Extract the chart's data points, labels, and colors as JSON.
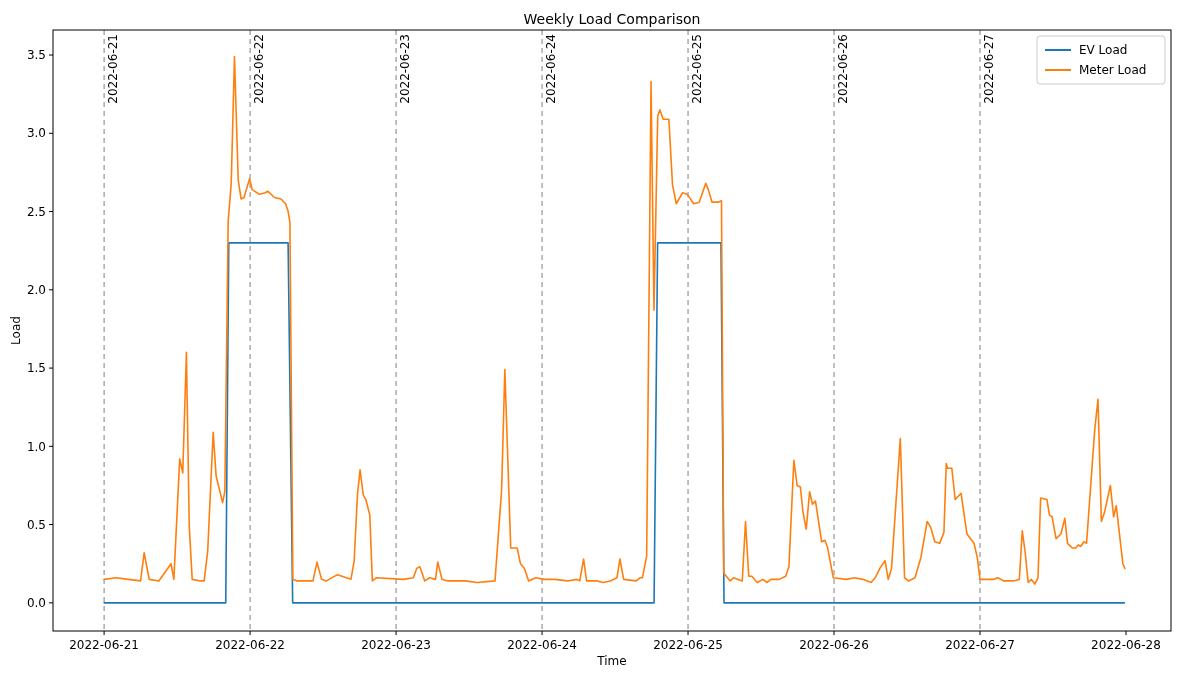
{
  "chart_data": {
    "type": "line",
    "title": "Weekly Load Comparison",
    "xlabel": "Time",
    "ylabel": "Load",
    "xlim": [
      "2022-06-20T15:36",
      "2022-06-28T07:24"
    ],
    "xticks": [
      "2022-06-21",
      "2022-06-22",
      "2022-06-23",
      "2022-06-24",
      "2022-06-25",
      "2022-06-26",
      "2022-06-27",
      "2022-06-28"
    ],
    "ylim": [
      -0.18,
      3.66
    ],
    "yticks": [
      {
        "value": 0,
        "label": "0.0"
      },
      {
        "value": 0.5,
        "label": "0.5"
      },
      {
        "value": 1,
        "label": "1.0"
      },
      {
        "value": 1.5,
        "label": "1.5"
      },
      {
        "value": 2,
        "label": "2.0"
      },
      {
        "value": 2.5,
        "label": "2.5"
      },
      {
        "value": 3,
        "label": "3.0"
      },
      {
        "value": 3.5,
        "label": "3.5"
      }
    ],
    "grid": false,
    "legend": "top right",
    "marker": "none",
    "line_style": "solid",
    "ref_lines": [
      {
        "axis": "x",
        "value": "2022-06-21",
        "label": "2022-06-21",
        "color": "#808080",
        "line_style": "dashed"
      },
      {
        "axis": "x",
        "value": "2022-06-22",
        "label": "2022-06-22",
        "color": "#808080",
        "line_style": "dashed"
      },
      {
        "axis": "x",
        "value": "2022-06-23",
        "label": "2022-06-23",
        "color": "#808080",
        "line_style": "dashed"
      },
      {
        "axis": "x",
        "value": "2022-06-24",
        "label": "2022-06-24",
        "color": "#808080",
        "line_style": "dashed"
      },
      {
        "axis": "x",
        "value": "2022-06-25",
        "label": "2022-06-25",
        "color": "#808080",
        "line_style": "dashed"
      },
      {
        "axis": "x",
        "value": "2022-06-26",
        "label": "2022-06-26",
        "color": "#808080",
        "line_style": "dashed"
      },
      {
        "axis": "x",
        "value": "2022-06-27",
        "label": "2022-06-27",
        "color": "#808080",
        "line_style": "dashed"
      }
    ],
    "series": [
      {
        "name": "EV Load",
        "color": "#1f77b4",
        "x": [
          "2022-06-21T00:00",
          "2022-06-21T20:00",
          "2022-06-21T20:30",
          "2022-06-22T06:15",
          "2022-06-22T07:00",
          "2022-06-24T18:25",
          "2022-06-24T19:00",
          "2022-06-25T05:25",
          "2022-06-25T05:55",
          "2022-06-27T23:45"
        ],
        "values": [
          0,
          0,
          2.3,
          2.3,
          0,
          0,
          2.3,
          2.3,
          0,
          0
        ]
      },
      {
        "name": "Meter Load",
        "color": "#ff7f0e",
        "x": [
          "2022-06-21T00:00",
          "2022-06-21T02:00",
          "2022-06-21T04:00",
          "2022-06-21T06:00",
          "2022-06-21T06:35",
          "2022-06-21T07:25",
          "2022-06-21T09:00",
          "2022-06-21T11:00",
          "2022-06-21T11:28",
          "2022-06-21T12:26",
          "2022-06-21T12:56",
          "2022-06-21T13:32",
          "2022-06-21T14:00",
          "2022-06-21T14:29",
          "2022-06-21T15:50",
          "2022-06-21T16:27",
          "2022-06-21T17:02",
          "2022-06-21T17:56",
          "2022-06-21T18:25",
          "2022-06-21T19:29",
          "2022-06-21T19:51",
          "2022-06-21T20:24",
          "2022-06-21T20:54",
          "2022-06-21T21:26",
          "2022-06-21T22:03",
          "2022-06-21T22:32",
          "2022-06-21T23:00",
          "2022-06-21T23:55",
          "2022-06-22T00:21",
          "2022-06-22T01:32",
          "2022-06-22T02:30",
          "2022-06-22T02:54",
          "2022-06-22T04:00",
          "2022-06-22T05:05",
          "2022-06-22T05:50",
          "2022-06-22T06:16",
          "2022-06-22T06:33",
          "2022-06-22T07:02",
          "2022-06-22T07:43",
          "2022-06-22T10:20",
          "2022-06-22T11:00",
          "2022-06-22T11:45",
          "2022-06-22T12:33",
          "2022-06-22T14:22",
          "2022-06-22T16:35",
          "2022-06-22T17:07",
          "2022-06-22T17:39",
          "2022-06-22T18:05",
          "2022-06-22T18:36",
          "2022-06-22T19:02",
          "2022-06-22T19:41",
          "2022-06-22T20:06",
          "2022-06-22T20:45",
          "2022-06-23T01:14",
          "2022-06-23T02:51",
          "2022-06-23T03:23",
          "2022-06-23T03:55",
          "2022-06-23T04:43",
          "2022-06-23T05:31",
          "2022-06-23T06:29",
          "2022-06-23T06:51",
          "2022-06-23T07:33",
          "2022-06-23T08:28",
          "2022-06-23T11:25",
          "2022-06-23T13:18",
          "2022-06-23T16:16",
          "2022-06-23T17:21",
          "2022-06-23T17:53",
          "2022-06-23T18:51",
          "2022-06-23T19:55",
          "2022-06-23T20:27",
          "2022-06-23T21:06",
          "2022-06-23T21:48",
          "2022-06-23T22:59",
          "2022-06-24T00:20",
          "2022-06-24T02:06",
          "2022-06-24T04:12",
          "2022-06-24T05:43",
          "2022-06-24T06:12",
          "2022-06-24T06:50",
          "2022-06-24T07:19",
          "2022-06-24T09:05",
          "2022-06-24T10:00",
          "2022-06-24T11:14",
          "2022-06-24T12:19",
          "2022-06-24T12:48",
          "2022-06-24T13:25",
          "2022-06-24T15:29",
          "2022-06-24T16:06",
          "2022-06-24T16:30",
          "2022-06-24T17:12",
          "2022-06-24T17:55",
          "2022-06-24T18:24",
          "2022-06-24T19:01",
          "2022-06-24T19:22",
          "2022-06-24T19:55",
          "2022-06-24T20:51",
          "2022-06-24T21:27",
          "2022-06-24T22:04",
          "2022-06-24T23:06",
          "2022-06-24T23:53",
          "2022-06-25T00:55",
          "2022-06-25T01:50",
          "2022-06-25T02:55",
          "2022-06-25T03:20",
          "2022-06-25T03:57",
          "2022-06-25T04:58",
          "2022-06-25T05:30",
          "2022-06-25T05:52",
          "2022-06-25T06:56",
          "2022-06-25T07:28",
          "2022-06-25T08:55",
          "2022-06-25T09:27",
          "2022-06-25T09:59",
          "2022-06-25T10:30",
          "2022-06-25T11:23",
          "2022-06-25T12:18",
          "2022-06-25T13:00",
          "2022-06-25T13:36",
          "2022-06-25T14:59",
          "2022-06-25T16:03",
          "2022-06-25T16:35",
          "2022-06-25T17:24",
          "2022-06-25T17:56",
          "2022-06-25T18:28",
          "2022-06-25T18:54",
          "2022-06-25T19:26",
          "2022-06-25T19:59",
          "2022-06-25T20:28",
          "2022-06-25T20:57",
          "2022-06-25T21:58",
          "2022-06-25T22:30",
          "2022-06-25T22:58",
          "2022-06-25T23:53",
          "2022-06-26T02:02",
          "2022-06-26T03:23",
          "2022-06-26T04:44",
          "2022-06-26T06:05",
          "2022-06-26T06:46",
          "2022-06-26T07:32",
          "2022-06-26T08:23",
          "2022-06-26T08:55",
          "2022-06-26T09:27",
          "2022-06-26T10:54",
          "2022-06-26T11:36",
          "2022-06-26T12:14",
          "2022-06-26T13:19",
          "2022-06-26T14:17",
          "2022-06-26T15:19",
          "2022-06-26T15:55",
          "2022-06-26T16:34",
          "2022-06-26T17:22",
          "2022-06-26T18:04",
          "2022-06-26T18:27",
          "2022-06-26T18:40",
          "2022-06-26T19:22",
          "2022-06-26T19:55",
          "2022-06-26T20:53",
          "2022-06-26T21:51",
          "2022-06-26T23:01",
          "2022-06-26T23:33",
          "2022-06-27T00:00",
          "2022-06-27T02:16",
          "2022-06-27T02:55",
          "2022-06-27T03:53",
          "2022-06-27T05:30",
          "2022-06-27T06:28",
          "2022-06-27T06:57",
          "2022-06-27T07:26",
          "2022-06-27T07:55",
          "2022-06-27T08:27",
          "2022-06-27T09:00",
          "2022-06-27T09:32",
          "2022-06-27T09:58",
          "2022-06-27T11:00",
          "2022-06-27T11:25",
          "2022-06-27T11:51",
          "2022-06-27T12:30",
          "2022-06-27T13:18",
          "2022-06-27T13:57",
          "2022-06-27T14:23",
          "2022-06-27T15:12",
          "2022-06-27T15:44",
          "2022-06-27T16:10",
          "2022-06-27T16:32",
          "2022-06-27T17:05",
          "2022-06-27T17:31",
          "2022-06-27T18:52",
          "2022-06-27T19:24",
          "2022-06-27T19:57",
          "2022-06-27T20:29",
          "2022-06-27T21:26",
          "2022-06-27T21:58",
          "2022-06-27T22:24",
          "2022-06-27T23:29",
          "2022-06-27T23:49"
        ],
        "values": [
          0.15,
          0.16,
          0.15,
          0.14,
          0.32,
          0.15,
          0.14,
          0.25,
          0.15,
          0.92,
          0.83,
          1.6,
          0.49,
          0.15,
          0.14,
          0.14,
          0.33,
          1.09,
          0.81,
          0.64,
          0.71,
          2.44,
          2.68,
          3.49,
          2.7,
          2.58,
          2.59,
          2.71,
          2.64,
          2.61,
          2.62,
          2.63,
          2.59,
          2.58,
          2.55,
          2.5,
          2.43,
          0.15,
          0.14,
          0.14,
          0.26,
          0.15,
          0.14,
          0.18,
          0.15,
          0.27,
          0.69,
          0.85,
          0.69,
          0.66,
          0.56,
          0.14,
          0.16,
          0.15,
          0.16,
          0.22,
          0.23,
          0.14,
          0.16,
          0.15,
          0.26,
          0.15,
          0.14,
          0.14,
          0.13,
          0.14,
          0.72,
          1.49,
          0.35,
          0.35,
          0.25,
          0.22,
          0.14,
          0.16,
          0.15,
          0.15,
          0.14,
          0.15,
          0.14,
          0.28,
          0.14,
          0.14,
          0.13,
          0.14,
          0.16,
          0.28,
          0.15,
          0.14,
          0.16,
          0.16,
          0.3,
          3.33,
          1.87,
          3.11,
          3.15,
          3.09,
          3.09,
          2.67,
          2.55,
          2.62,
          2.61,
          2.55,
          2.56,
          2.68,
          2.64,
          2.56,
          2.56,
          2.57,
          0.19,
          0.14,
          0.16,
          0.14,
          0.52,
          0.17,
          0.17,
          0.13,
          0.15,
          0.13,
          0.15,
          0.15,
          0.17,
          0.23,
          0.91,
          0.75,
          0.74,
          0.58,
          0.47,
          0.71,
          0.63,
          0.65,
          0.39,
          0.4,
          0.35,
          0.16,
          0.15,
          0.16,
          0.15,
          0.13,
          0.16,
          0.22,
          0.27,
          0.15,
          0.22,
          1.05,
          0.16,
          0.14,
          0.16,
          0.29,
          0.52,
          0.48,
          0.39,
          0.38,
          0.45,
          0.89,
          0.86,
          0.86,
          0.66,
          0.7,
          0.44,
          0.38,
          0.29,
          0.15,
          0.15,
          0.16,
          0.14,
          0.14,
          0.15,
          0.46,
          0.32,
          0.13,
          0.15,
          0.12,
          0.16,
          0.67,
          0.66,
          0.56,
          0.55,
          0.41,
          0.44,
          0.54,
          0.38,
          0.35,
          0.35,
          0.37,
          0.36,
          0.39,
          0.38,
          1.11,
          1.3,
          0.52,
          0.58,
          0.75,
          0.55,
          0.62,
          0.25,
          0.22
        ]
      }
    ]
  }
}
